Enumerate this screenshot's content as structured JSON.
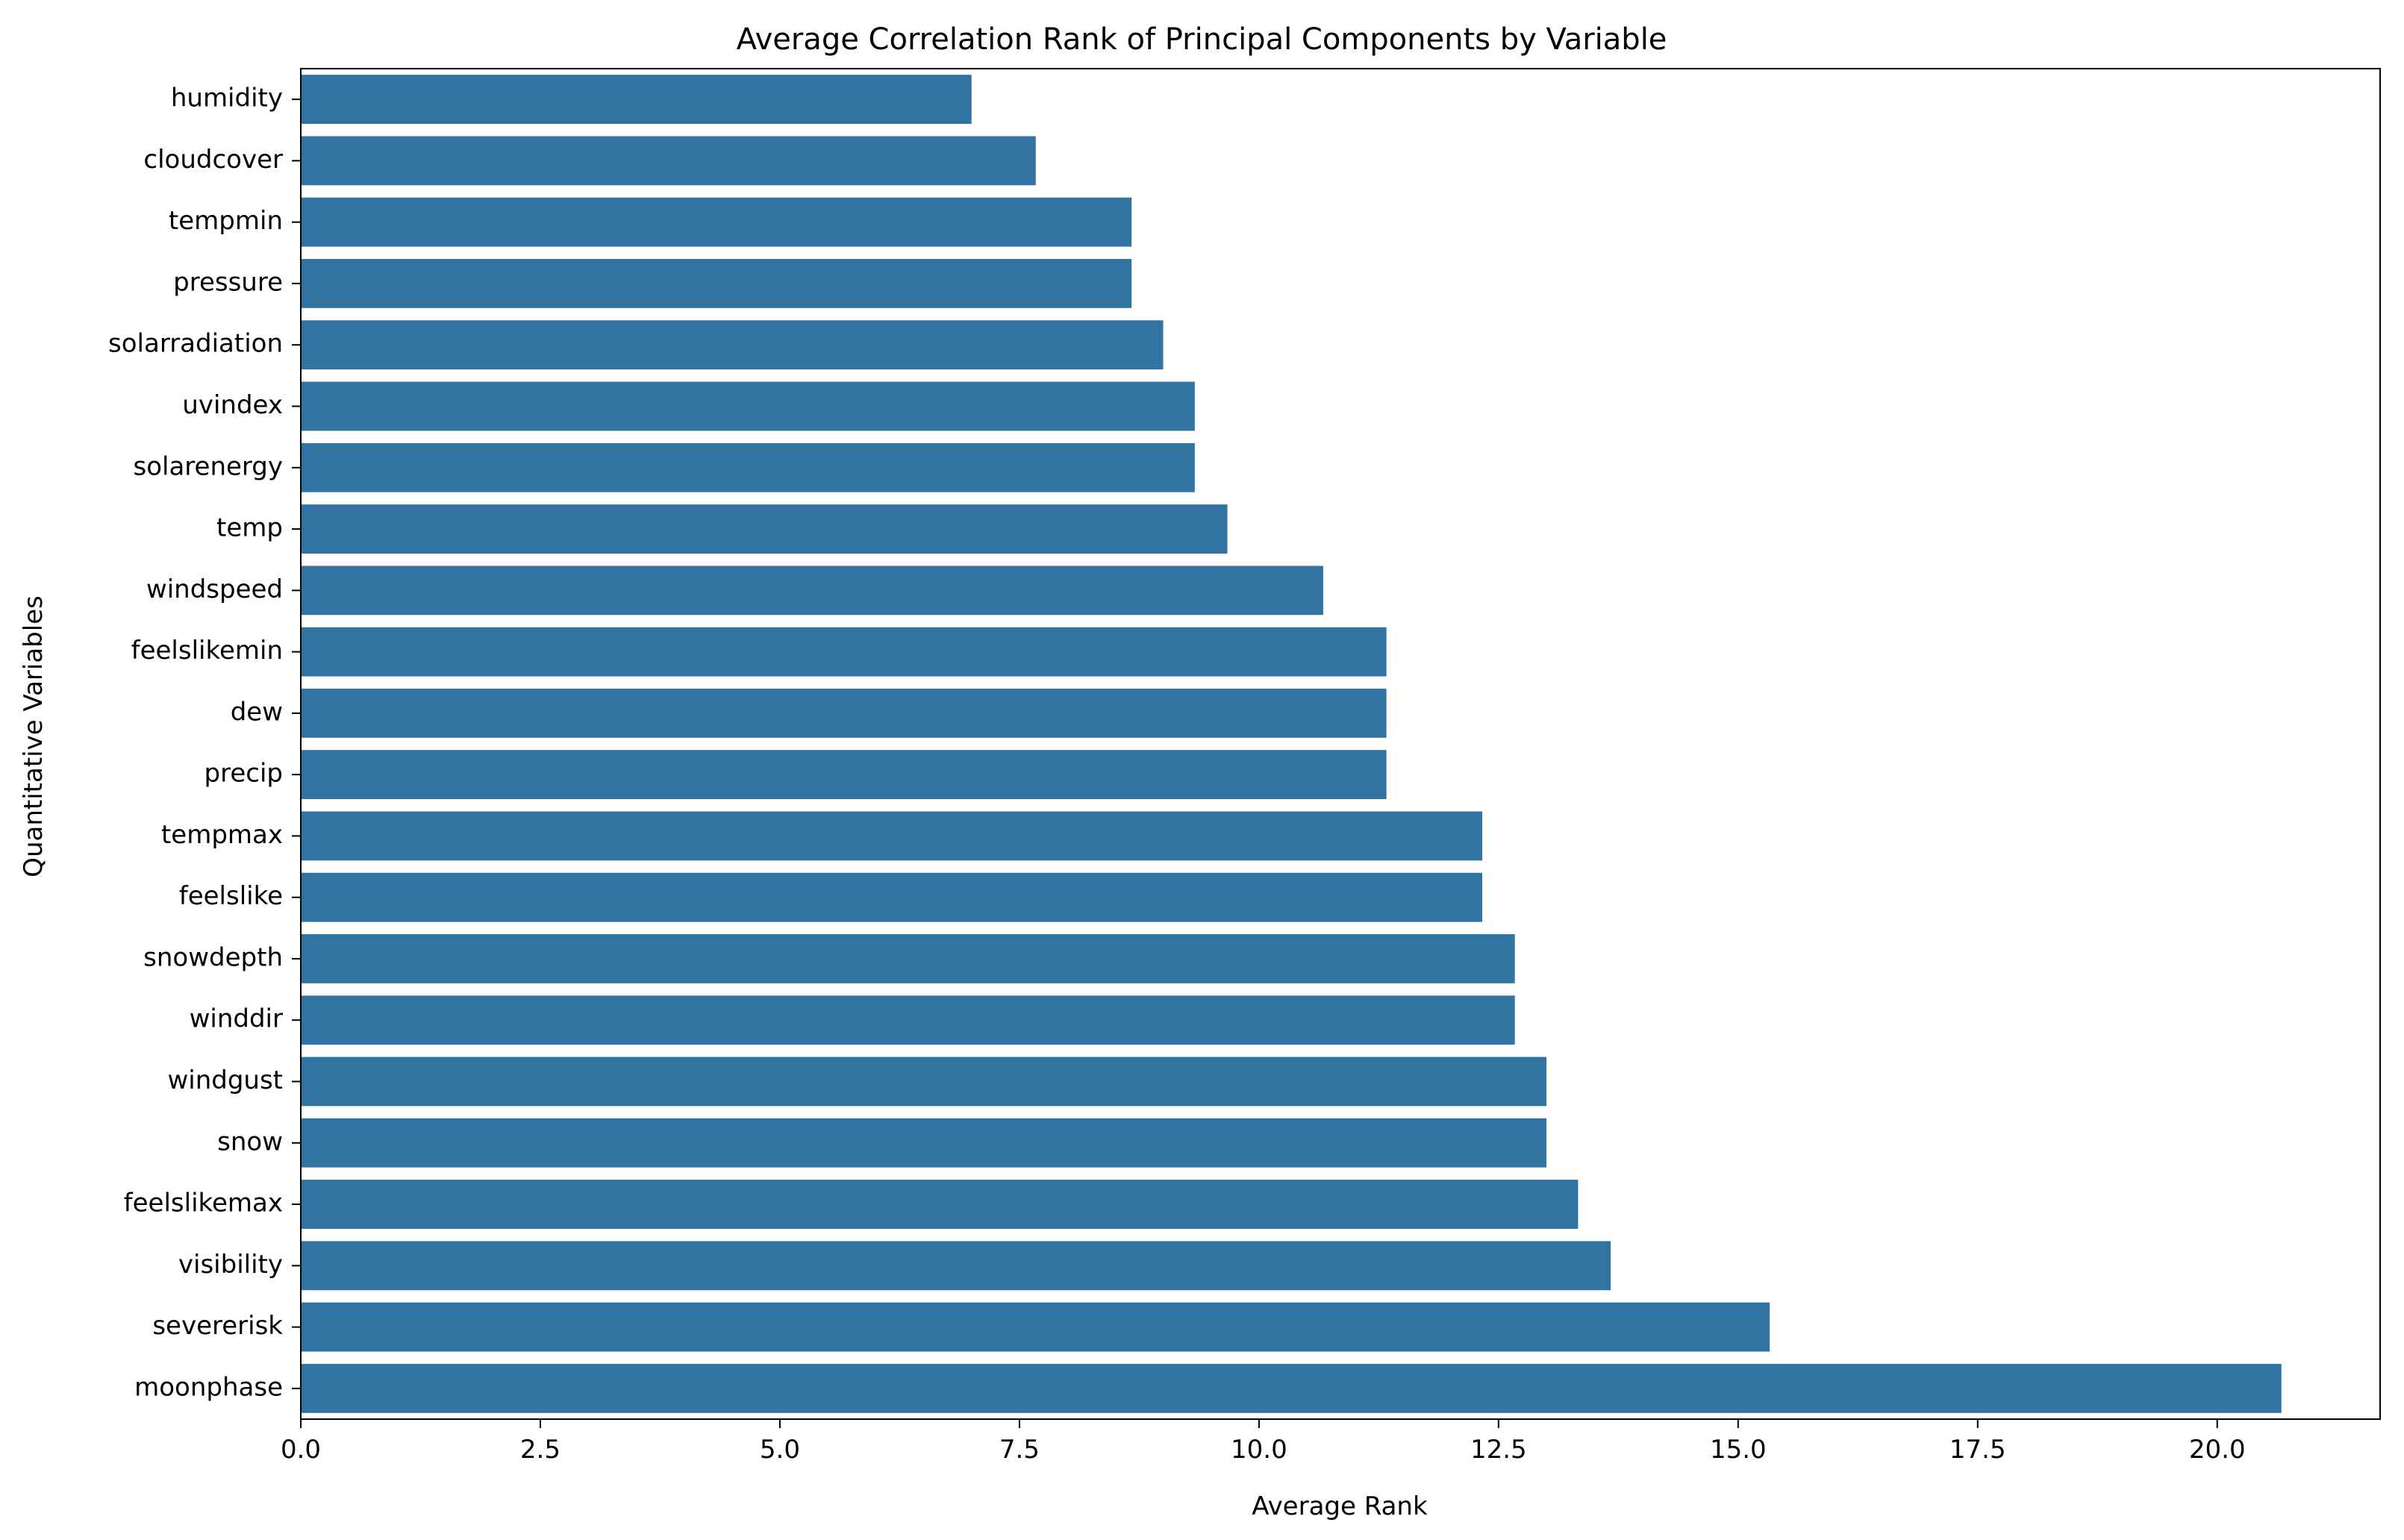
{
  "chart_data": {
    "type": "bar",
    "orientation": "horizontal",
    "title": "Average Correlation Rank of Principal Components by Variable",
    "xlabel": "Average Rank",
    "ylabel": "Quantitative Variables",
    "xlim": [
      0,
      21.7
    ],
    "xticks": [
      0.0,
      2.5,
      5.0,
      7.5,
      10.0,
      12.5,
      15.0,
      17.5,
      20.0
    ],
    "xtick_labels": [
      "0.0",
      "2.5",
      "5.0",
      "7.5",
      "10.0",
      "12.5",
      "15.0",
      "17.5",
      "20.0"
    ],
    "grid": false,
    "bar_color": "#3274a1",
    "categories": [
      "humidity",
      "cloudcover",
      "tempmin",
      "pressure",
      "solarradiation",
      "uvindex",
      "solarenergy",
      "temp",
      "windspeed",
      "feelslikemin",
      "dew",
      "precip",
      "tempmax",
      "feelslike",
      "snowdepth",
      "winddir",
      "windgust",
      "snow",
      "feelslikemax",
      "visibility",
      "severerisk",
      "moonphase"
    ],
    "values": [
      7.0,
      7.67,
      8.67,
      8.67,
      9.0,
      9.33,
      9.33,
      9.67,
      10.67,
      11.33,
      11.33,
      11.33,
      12.33,
      12.33,
      12.67,
      12.67,
      13.0,
      13.0,
      13.33,
      13.67,
      15.33,
      20.67
    ]
  }
}
